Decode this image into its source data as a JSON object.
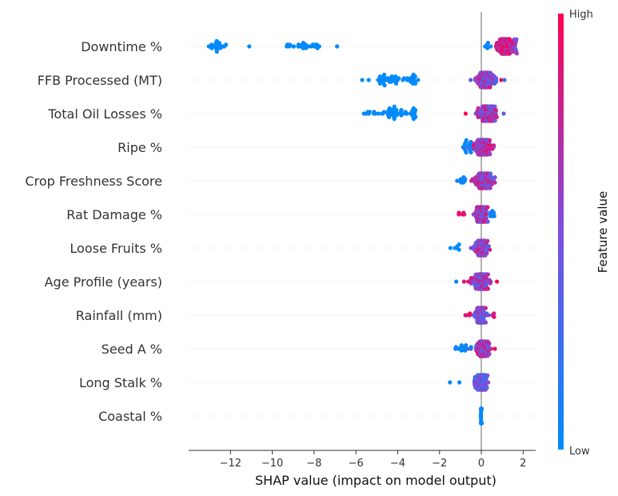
{
  "chart_data": {
    "type": "scatter",
    "subtype": "beeswarm",
    "xlabel": "SHAP value (impact on model output)",
    "xlim": [
      -14,
      2.6
    ],
    "xticks": [
      -12,
      -10,
      -8,
      -6,
      -4,
      -2,
      0,
      2
    ],
    "xtick_labels": [
      "−12",
      "−10",
      "−8",
      "−6",
      "−4",
      "−2",
      "0",
      "2"
    ],
    "colorbar": {
      "title": "Feature value",
      "high_label": "High",
      "low_label": "Low",
      "low_color": "#008bfb",
      "high_color": "#ff0052"
    },
    "grid": false,
    "features": [
      {
        "name": "Downtime %",
        "clusters": [
          {
            "center": -12.6,
            "spread": 0.55,
            "count": 22,
            "color": 0.0,
            "cvar": 0.02
          },
          {
            "center": -11.1,
            "spread": 0.05,
            "count": 1,
            "color": 0.0,
            "cvar": 0.0
          },
          {
            "center": -8.3,
            "spread": 1.1,
            "count": 26,
            "color": 0.0,
            "cvar": 0.02
          },
          {
            "center": -6.9,
            "spread": 0.05,
            "count": 1,
            "color": 0.0,
            "cvar": 0.0
          },
          {
            "center": 0.3,
            "spread": 0.2,
            "count": 6,
            "color": 0.1,
            "cvar": 0.1
          },
          {
            "center": 1.1,
            "spread": 0.35,
            "count": 120,
            "color": 0.82,
            "cvar": 0.22
          },
          {
            "center": 1.6,
            "spread": 0.15,
            "count": 14,
            "color": 0.6,
            "cvar": 0.2
          }
        ]
      },
      {
        "name": "FFB Processed (MT)",
        "clusters": [
          {
            "center": -5.7,
            "spread": 0.05,
            "count": 1,
            "color": 0.0,
            "cvar": 0.0
          },
          {
            "center": -4.3,
            "spread": 1.0,
            "count": 40,
            "color": 0.0,
            "cvar": 0.02
          },
          {
            "center": -3.25,
            "spread": 0.15,
            "count": 12,
            "color": 0.0,
            "cvar": 0.02
          },
          {
            "center": 0.25,
            "spread": 0.45,
            "count": 110,
            "color": 0.6,
            "cvar": 0.3
          },
          {
            "center": 0.95,
            "spread": 0.05,
            "count": 1,
            "color": 0.95,
            "cvar": 0.0
          }
        ]
      },
      {
        "name": "Total Oil Losses %",
        "clusters": [
          {
            "center": -5.5,
            "spread": 0.05,
            "count": 1,
            "color": 0.0,
            "cvar": 0.0
          },
          {
            "center": -4.3,
            "spread": 1.0,
            "count": 40,
            "color": 0.0,
            "cvar": 0.02
          },
          {
            "center": -3.25,
            "spread": 0.15,
            "count": 12,
            "color": 0.0,
            "cvar": 0.02
          },
          {
            "center": -0.75,
            "spread": 0.05,
            "count": 1,
            "color": 0.95,
            "cvar": 0.0
          },
          {
            "center": 0.25,
            "spread": 0.5,
            "count": 110,
            "color": 0.6,
            "cvar": 0.3
          }
        ]
      },
      {
        "name": "Ripe %",
        "clusters": [
          {
            "center": -0.7,
            "spread": 0.35,
            "count": 18,
            "color": 0.05,
            "cvar": 0.05
          },
          {
            "center": 0.05,
            "spread": 0.45,
            "count": 130,
            "color": 0.65,
            "cvar": 0.3
          }
        ]
      },
      {
        "name": "Crop Freshness Score",
        "clusters": [
          {
            "center": -0.9,
            "spread": 0.25,
            "count": 10,
            "color": 0.05,
            "cvar": 0.05
          },
          {
            "center": 0.05,
            "spread": 0.45,
            "count": 130,
            "color": 0.6,
            "cvar": 0.3
          }
        ]
      },
      {
        "name": "Rat Damage %",
        "clusters": [
          {
            "center": -0.9,
            "spread": 0.2,
            "count": 5,
            "color": 0.9,
            "cvar": 0.1
          },
          {
            "center": 0.0,
            "spread": 0.35,
            "count": 110,
            "color": 0.65,
            "cvar": 0.3
          },
          {
            "center": 0.5,
            "spread": 0.15,
            "count": 10,
            "color": 0.05,
            "cvar": 0.05
          }
        ]
      },
      {
        "name": "Loose Fruits %",
        "clusters": [
          {
            "center": -1.2,
            "spread": 0.3,
            "count": 6,
            "color": 0.0,
            "cvar": 0.02
          },
          {
            "center": 0.0,
            "spread": 0.35,
            "count": 110,
            "color": 0.6,
            "cvar": 0.3
          }
        ]
      },
      {
        "name": "Age Profile (years)",
        "clusters": [
          {
            "center": -1.2,
            "spread": 0.05,
            "count": 1,
            "color": 0.0,
            "cvar": 0.0
          },
          {
            "center": -0.6,
            "spread": 0.25,
            "count": 8,
            "color": 0.8,
            "cvar": 0.2
          },
          {
            "center": 0.0,
            "spread": 0.4,
            "count": 110,
            "color": 0.6,
            "cvar": 0.3
          },
          {
            "center": 0.75,
            "spread": 0.05,
            "count": 1,
            "color": 0.95,
            "cvar": 0.0
          }
        ]
      },
      {
        "name": "Rainfall (mm)",
        "clusters": [
          {
            "center": -0.55,
            "spread": 0.2,
            "count": 4,
            "color": 0.9,
            "cvar": 0.1
          },
          {
            "center": 0.0,
            "spread": 0.3,
            "count": 110,
            "color": 0.5,
            "cvar": 0.3
          },
          {
            "center": 0.55,
            "spread": 0.1,
            "count": 3,
            "color": 0.9,
            "cvar": 0.1
          }
        ]
      },
      {
        "name": "Seed A %",
        "clusters": [
          {
            "center": -0.85,
            "spread": 0.45,
            "count": 14,
            "color": 0.05,
            "cvar": 0.05
          },
          {
            "center": 0.05,
            "spread": 0.35,
            "count": 100,
            "color": 0.65,
            "cvar": 0.3
          },
          {
            "center": 0.65,
            "spread": 0.05,
            "count": 1,
            "color": 0.95,
            "cvar": 0.0
          }
        ]
      },
      {
        "name": "Long Stalk %",
        "clusters": [
          {
            "center": -1.5,
            "spread": 0.05,
            "count": 1,
            "color": 0.0,
            "cvar": 0.0
          },
          {
            "center": -1.05,
            "spread": 0.05,
            "count": 1,
            "color": 0.0,
            "cvar": 0.0
          },
          {
            "center": 0.0,
            "spread": 0.3,
            "count": 100,
            "color": 0.4,
            "cvar": 0.25
          }
        ]
      },
      {
        "name": "Coastal %",
        "clusters": [
          {
            "center": 0.0,
            "spread": 0.02,
            "count": 80,
            "color": 0.0,
            "cvar": 0.02
          }
        ]
      }
    ]
  }
}
